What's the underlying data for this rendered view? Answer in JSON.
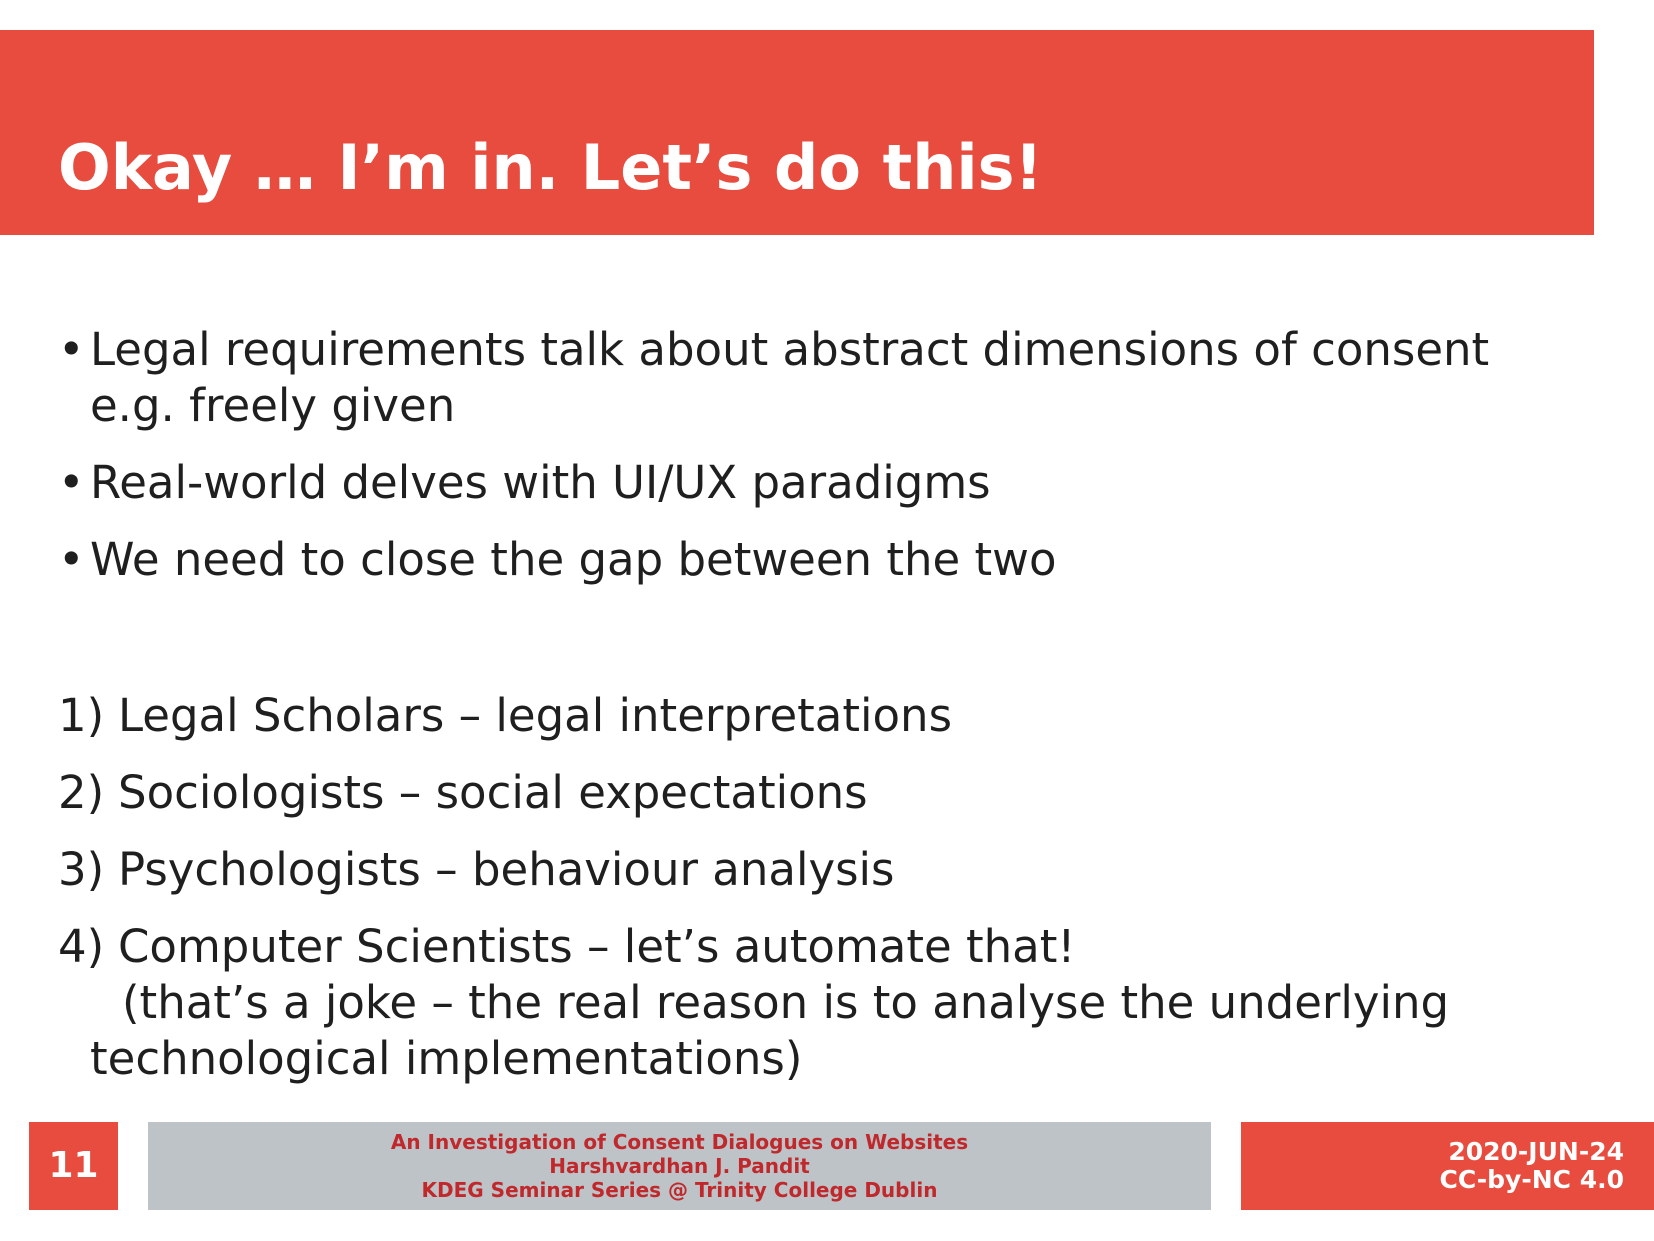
{
  "slide": {
    "title": "Okay … I’m in. Let’s do this!"
  },
  "bullets": [
    {
      "marker": "•",
      "text": "Legal requirements talk about abstract dimensions of consent e.g. freely given"
    },
    {
      "marker": "•",
      "text": "Real-world delves with UI/UX paradigms"
    },
    {
      "marker": "•",
      "text": "We need to close the gap between the two"
    }
  ],
  "numbered": [
    {
      "marker": "1)",
      "text": "Legal Scholars – legal interpretations"
    },
    {
      "marker": "2)",
      "text": "Sociologists – social expectations"
    },
    {
      "marker": "3)",
      "text": "Psychologists – behaviour analysis"
    },
    {
      "marker": "4)",
      "text": "Computer Scientists – let’s automate that!",
      "sub": "(that’s a joke – the real reason is to analyse the underlying technological implementations)"
    }
  ],
  "footer": {
    "slide_number": "11",
    "presentation_title": "An Investigation of Consent Dialogues on Websites",
    "author": "Harshvardhan J. Pandit",
    "event": "KDEG Seminar Series @ Trinity College Dublin",
    "date": "2020-JUN-24",
    "license": "CC-by-NC 4.0"
  },
  "colors": {
    "accent": "#e74c3f",
    "footer_gray": "#bdc3c7",
    "footer_text_red": "#c0282b",
    "body_text": "#1f1f1f"
  }
}
